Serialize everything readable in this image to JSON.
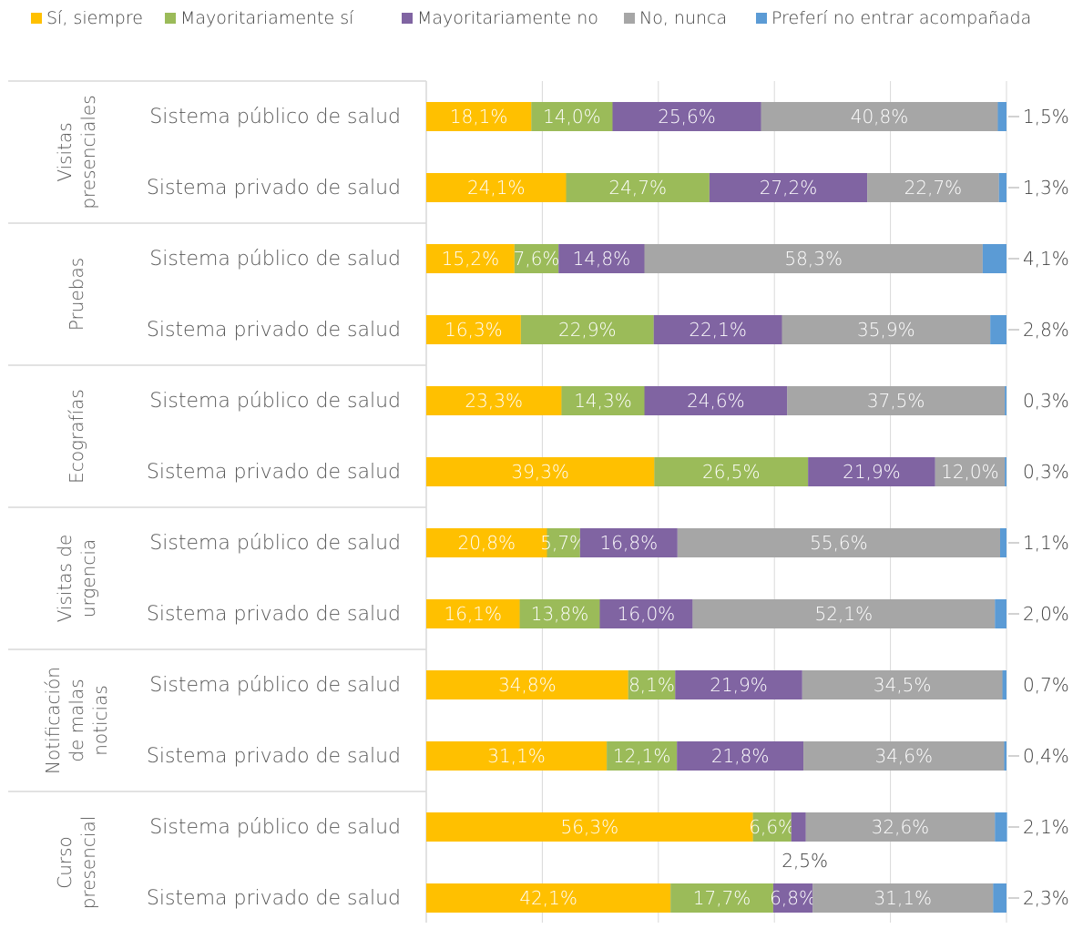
{
  "colors": {
    "si_siempre": "#FFC000",
    "mayoritariamente_si": "#9BBB59",
    "mayoritariamente_no": "#8064A2",
    "no_nunca": "#A6A6A6",
    "preferi_no_entrar": "#5B9BD5"
  },
  "legend": [
    {
      "label": "Sí, siempre",
      "color": "#FFC000"
    },
    {
      "label": "Mayoritariamente sí",
      "color": "#9BBB59"
    },
    {
      "label": "Mayoritariamente no",
      "color": "#8064A2"
    },
    {
      "label": "No, nunca",
      "color": "#A6A6A6"
    },
    {
      "label": "Preferí no entrar acompañada",
      "color": "#5B9BD5"
    }
  ],
  "chart_data": {
    "type": "bar",
    "orientation": "horizontal",
    "stacked": "percent",
    "grid": true,
    "legend_position": "top",
    "xlim": [
      0,
      100
    ],
    "groups": [
      {
        "label": "Visitas presenciales",
        "categories": [
          "Sistema público de salud",
          "Sistema privado de salud"
        ]
      },
      {
        "label": "Pruebas",
        "categories": [
          "Sistema público de salud",
          "Sistema privado de salud"
        ]
      },
      {
        "label": "Ecografías",
        "categories": [
          "Sistema público de salud",
          "Sistema privado de salud"
        ]
      },
      {
        "label": "Visitas de urgencia",
        "categories": [
          "Sistema público de salud",
          "Sistema privado de salud"
        ]
      },
      {
        "label": "Notificación de malas noticias",
        "categories": [
          "Sistema público de salud",
          "Sistema privado de salud"
        ]
      },
      {
        "label": "Curso presencial",
        "categories": [
          "Sistema público de salud",
          "Sistema privado de salud"
        ]
      }
    ],
    "series": [
      {
        "name": "Sí, siempre",
        "values": [
          18.1,
          24.1,
          15.2,
          16.3,
          23.3,
          39.3,
          20.8,
          16.1,
          34.8,
          31.1,
          56.3,
          42.1
        ],
        "labels": [
          "18,1%",
          "24,1%",
          "15,2%",
          "16,3%",
          "23,3%",
          "39,3%",
          "20,8%",
          "16,1%",
          "34,8%",
          "31,1%",
          "56,3%",
          "42,1%"
        ]
      },
      {
        "name": "Mayoritariamente sí",
        "values": [
          14.0,
          24.7,
          7.6,
          22.9,
          14.3,
          26.5,
          5.7,
          13.8,
          8.1,
          12.1,
          6.6,
          17.7
        ],
        "labels": [
          "14,0%",
          "24,7%",
          "7,6%",
          "22,9%",
          "14,3%",
          "26,5%",
          "5,7%",
          "13,8%",
          "8,1%",
          "12,1%",
          "6,6%",
          "17,7%"
        ]
      },
      {
        "name": "Mayoritariamente no",
        "values": [
          25.6,
          27.2,
          14.8,
          22.1,
          24.6,
          21.9,
          16.8,
          16.0,
          21.9,
          21.8,
          2.5,
          6.8
        ],
        "labels": [
          "25,6%",
          "27,2%",
          "14,8%",
          "22,1%",
          "24,6%",
          "21,9%",
          "16,8%",
          "16,0%",
          "21,9%",
          "21,8%",
          "2,5%",
          "6,8%"
        ]
      },
      {
        "name": "No, nunca",
        "values": [
          40.8,
          22.7,
          58.3,
          35.9,
          37.5,
          12.0,
          55.6,
          52.1,
          34.5,
          34.6,
          32.6,
          31.1
        ],
        "labels": [
          "40,8%",
          "22,7%",
          "58,3%",
          "35,9%",
          "37,5%",
          "12,0%",
          "55,6%",
          "52,1%",
          "34,5%",
          "34,6%",
          "32,6%",
          "31,1%"
        ]
      },
      {
        "name": "Preferí no entrar acompañada",
        "values": [
          1.5,
          1.3,
          4.1,
          2.8,
          0.3,
          0.3,
          1.1,
          2.0,
          0.7,
          0.4,
          2.1,
          2.3
        ],
        "labels": [
          "1,5%",
          "1,3%",
          "4,1%",
          "2,8%",
          "0,3%",
          "0,3%",
          "1,1%",
          "2,0%",
          "0,7%",
          "0,4%",
          "2,1%",
          "2,3%"
        ]
      }
    ]
  }
}
